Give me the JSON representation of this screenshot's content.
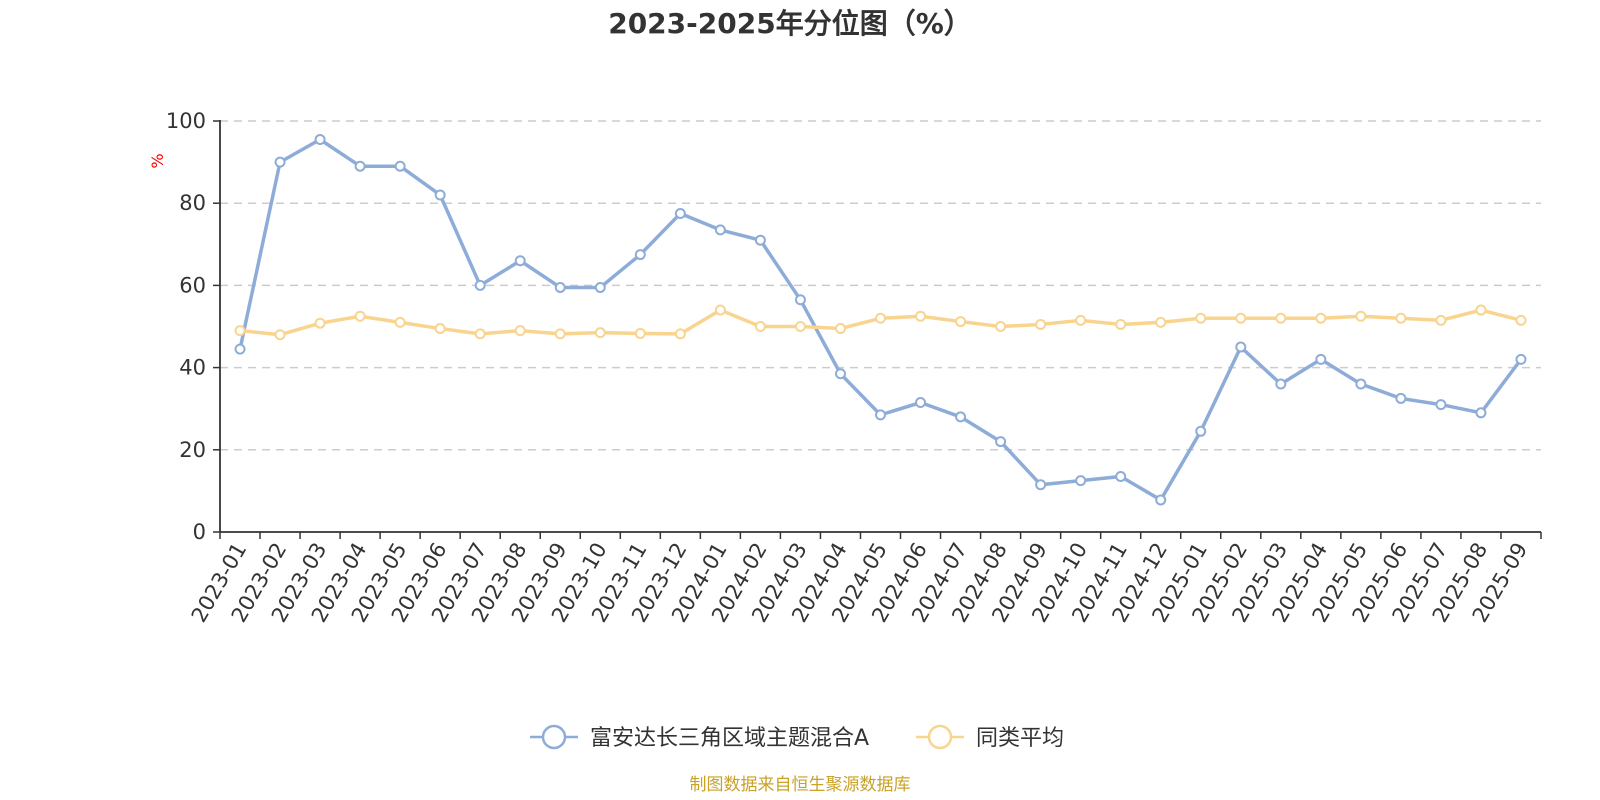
{
  "chart_data": {
    "type": "line",
    "title": "2023-2025年分位图（%）",
    "ylabel": "%",
    "xlabel": "",
    "ylim": [
      0,
      100
    ],
    "yticks": [
      0,
      20,
      40,
      60,
      80,
      100
    ],
    "grid": true,
    "legend_position": "bottom-center",
    "categories": [
      "2023-01",
      "2023-02",
      "2023-03",
      "2023-04",
      "2023-05",
      "2023-06",
      "2023-07",
      "2023-08",
      "2023-09",
      "2023-10",
      "2023-11",
      "2023-12",
      "2024-01",
      "2024-02",
      "2024-03",
      "2024-04",
      "2024-05",
      "2024-06",
      "2024-07",
      "2024-08",
      "2024-09",
      "2024-10",
      "2024-11",
      "2024-12",
      "2025-01",
      "2025-02",
      "2025-03",
      "2025-04",
      "2025-05",
      "2025-06",
      "2025-07",
      "2025-08",
      "2025-09"
    ],
    "series": [
      {
        "name": "富安达长三角区域主题混合A",
        "color": "#8eacd8",
        "values": [
          44.5,
          90,
          95.5,
          89,
          89,
          82,
          60,
          66,
          59.5,
          59.5,
          67.5,
          77.5,
          73.5,
          71,
          56.5,
          38.5,
          28.5,
          31.5,
          28,
          22,
          11.5,
          12.5,
          13.5,
          7.8,
          24.5,
          45,
          36,
          42,
          36,
          32.5,
          31,
          29,
          42
        ]
      },
      {
        "name": "同类平均",
        "color": "#f9d48e",
        "values": [
          49,
          48,
          50.8,
          52.5,
          51,
          49.5,
          48.2,
          49,
          48.2,
          48.5,
          48.3,
          48.2,
          54,
          50,
          50,
          49.5,
          52,
          52.5,
          51.2,
          50,
          50.5,
          51.5,
          50.5,
          51,
          52,
          52,
          52,
          52,
          52.5,
          52,
          51.5,
          54,
          51.5
        ]
      }
    ]
  },
  "source": {
    "text": "制图数据来自恒生聚源数据库",
    "color": "#c9a227"
  },
  "colors": {
    "axis": "#333333",
    "grid": "#cccccc",
    "y_unit": "#ff0000"
  }
}
